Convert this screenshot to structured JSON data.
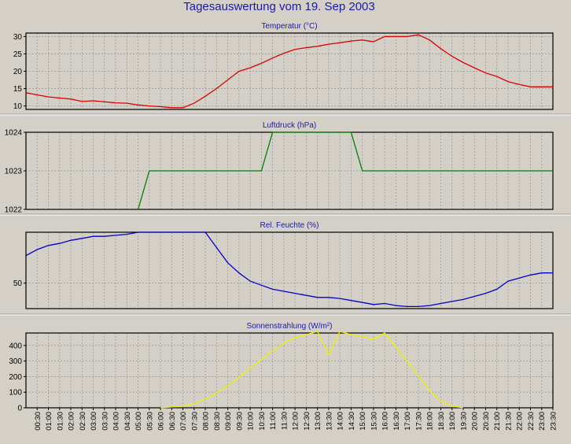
{
  "page": {
    "title": "Tagesauswertung vom 19. Sep 2003"
  },
  "colors": {
    "background": "#d4d0c8",
    "plot_background": "#d4d0c8",
    "title": "#1a1aa8",
    "temperature": "#e00000",
    "pressure": "#008000",
    "humidity": "#0000d0",
    "radiation": "#f0f000"
  },
  "x_axis": {
    "labels": [
      "00:30",
      "01:00",
      "01:30",
      "02:00",
      "02:30",
      "03:00",
      "03:30",
      "04:00",
      "04:30",
      "05:00",
      "05:30",
      "06:00",
      "06:30",
      "07:00",
      "07:30",
      "08:00",
      "08:30",
      "09:00",
      "09:30",
      "10:00",
      "10:30",
      "11:00",
      "11:30",
      "12:00",
      "12:30",
      "13:00",
      "13:30",
      "14:00",
      "14:30",
      "15:00",
      "15:30",
      "16:00",
      "16:30",
      "17:00",
      "17:30",
      "18:00",
      "18:30",
      "19:00",
      "19:30",
      "20:00",
      "20:30",
      "21:00",
      "21:30",
      "22:00",
      "22:30",
      "23:00",
      "23:30"
    ]
  },
  "chart_data": [
    {
      "type": "line",
      "title": "Temperatur (°C)",
      "ylim": [
        9,
        31
      ],
      "yticks": [
        10,
        15,
        20,
        25,
        30
      ],
      "ytick_labels": [
        "10",
        "15",
        "20",
        "25",
        "30"
      ],
      "grid": true,
      "series": [
        {
          "color": "#e00000",
          "x": [
            0.0,
            0.5,
            1.0,
            1.5,
            2.0,
            2.5,
            3.0,
            3.5,
            4.0,
            4.5,
            5.0,
            5.5,
            6.0,
            6.5,
            7.0,
            7.5,
            8.0,
            8.5,
            9.0,
            9.5,
            10.0,
            10.5,
            11.0,
            11.5,
            12.0,
            12.5,
            13.0,
            13.5,
            14.0,
            14.5,
            15.0,
            15.5,
            16.0,
            16.5,
            17.0,
            17.5,
            18.0,
            18.5,
            19.0,
            19.5,
            20.0,
            20.5,
            21.0,
            21.5,
            22.0,
            22.5,
            23.0,
            23.5
          ],
          "y": [
            13.8,
            13.2,
            12.6,
            12.3,
            12.0,
            11.3,
            11.5,
            11.2,
            10.9,
            10.8,
            10.3,
            10.0,
            9.8,
            9.5,
            9.5,
            10.8,
            12.8,
            15.0,
            17.5,
            20.0,
            21.0,
            22.3,
            23.8,
            25.2,
            26.3,
            26.8,
            27.2,
            27.8,
            28.2,
            28.7,
            29.0,
            28.5,
            30.0,
            30.0,
            30.0,
            30.5,
            29.0,
            26.5,
            24.3,
            22.5,
            21.0,
            19.5,
            18.5,
            17.0,
            16.2,
            15.5,
            15.5,
            15.5
          ]
        }
      ]
    },
    {
      "type": "line",
      "title": "Luftdruck (hPa)",
      "ylim": [
        1022,
        1024
      ],
      "yticks": [
        1022,
        1023,
        1024
      ],
      "ytick_labels": [
        "1022",
        "1023",
        "1024"
      ],
      "grid": true,
      "series": [
        {
          "color": "#008000",
          "x": [
            5.0,
            5.5,
            10.5,
            11.0,
            14.5,
            15.0,
            23.5
          ],
          "y": [
            1022.0,
            1023.0,
            1023.0,
            1024.0,
            1024.0,
            1023.0,
            1023.0
          ]
        }
      ]
    },
    {
      "type": "line",
      "title": "Rel. Feuchte (%)",
      "ylim": [
        25,
        100
      ],
      "yticks": [
        50
      ],
      "ytick_labels": [
        "50"
      ],
      "grid": true,
      "series": [
        {
          "color": "#0000d0",
          "x": [
            0.0,
            0.5,
            1.0,
            1.5,
            2.0,
            2.5,
            3.0,
            3.5,
            4.0,
            4.5,
            5.0,
            5.5,
            6.0,
            6.5,
            7.0,
            7.5,
            8.0,
            8.5,
            9.0,
            9.5,
            10.0,
            10.5,
            11.0,
            11.5,
            12.0,
            12.5,
            13.0,
            13.5,
            14.0,
            14.5,
            15.0,
            15.5,
            16.0,
            16.5,
            17.0,
            17.5,
            18.0,
            18.5,
            19.0,
            19.5,
            20.0,
            20.5,
            21.0,
            21.5,
            22.0,
            22.5,
            23.0,
            23.5
          ],
          "y": [
            77,
            83,
            87,
            89,
            92,
            94,
            96,
            96,
            97,
            98,
            100,
            100,
            100,
            100,
            100,
            100,
            100,
            85,
            70,
            60,
            52,
            48,
            44,
            42,
            40,
            38,
            36,
            36,
            35,
            33,
            31,
            29,
            30,
            28,
            27,
            27,
            28,
            30,
            32,
            34,
            37,
            40,
            44,
            52,
            55,
            58,
            60,
            60
          ]
        }
      ]
    },
    {
      "type": "line",
      "title": "Sonnenstrahlung (W/m²)",
      "ylim": [
        0,
        480
      ],
      "yticks": [
        0,
        100,
        200,
        300,
        400
      ],
      "ytick_labels": [
        "0",
        "100",
        "200",
        "300",
        "400"
      ],
      "grid": true,
      "series": [
        {
          "color": "#f0f000",
          "x": [
            6.0,
            6.5,
            7.0,
            7.5,
            8.0,
            8.5,
            9.0,
            9.5,
            10.0,
            10.5,
            11.0,
            11.5,
            12.0,
            12.5,
            13.0,
            13.5,
            14.0,
            14.5,
            15.0,
            15.5,
            16.0,
            16.5,
            17.0,
            17.5,
            18.0,
            18.5,
            19.0,
            19.5
          ],
          "y": [
            0,
            5,
            10,
            25,
            55,
            95,
            140,
            195,
            255,
            310,
            365,
            415,
            450,
            470,
            490,
            340,
            490,
            470,
            455,
            440,
            480,
            390,
            300,
            205,
            110,
            45,
            10,
            0
          ]
        }
      ]
    }
  ]
}
